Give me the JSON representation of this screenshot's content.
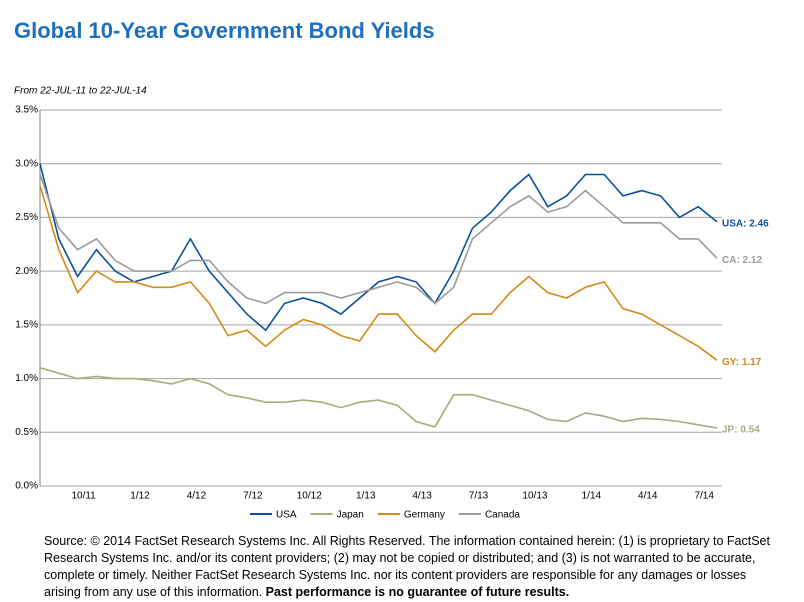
{
  "chart_data": {
    "type": "line",
    "title": "Global 10-Year Government Bond Yields",
    "subtitle": "From 22-JUL-11 to 22-JUL-14",
    "categories": [
      null,
      null,
      "10/11",
      null,
      null,
      "1/12",
      null,
      null,
      "4/12",
      null,
      null,
      "7/12",
      null,
      null,
      "10/12",
      null,
      null,
      "1/13",
      null,
      null,
      "4/13",
      null,
      null,
      "7/13",
      null,
      null,
      "10/13",
      null,
      null,
      "1/14",
      null,
      null,
      "4/14",
      null,
      null,
      "7/14",
      null
    ],
    "series": [
      {
        "name": "USA",
        "color": "#0a4f9e",
        "end_label": "USA: 2.46",
        "values": [
          3.0,
          2.3,
          1.95,
          2.2,
          2.0,
          1.9,
          1.95,
          2.0,
          2.3,
          2.0,
          1.8,
          1.6,
          1.45,
          1.7,
          1.75,
          1.7,
          1.6,
          1.75,
          1.9,
          1.95,
          1.9,
          1.7,
          2.0,
          2.4,
          2.55,
          2.75,
          2.9,
          2.6,
          2.7,
          2.9,
          2.9,
          2.7,
          2.75,
          2.7,
          2.5,
          2.6,
          2.46
        ]
      },
      {
        "name": "Japan",
        "color": "#a4ad80",
        "end_label": "JP: 0.54",
        "values": [
          1.1,
          1.05,
          1.0,
          1.02,
          1.0,
          1.0,
          0.98,
          0.95,
          1.0,
          0.95,
          0.85,
          0.82,
          0.78,
          0.78,
          0.8,
          0.78,
          0.73,
          0.78,
          0.8,
          0.75,
          0.6,
          0.55,
          0.85,
          0.85,
          0.8,
          0.75,
          0.7,
          0.62,
          0.6,
          0.68,
          0.65,
          0.6,
          0.63,
          0.62,
          0.6,
          0.57,
          0.54
        ]
      },
      {
        "name": "Germany",
        "color": "#d48a16",
        "end_label": "GY: 1.17",
        "values": [
          2.8,
          2.2,
          1.8,
          2.0,
          1.9,
          1.9,
          1.85,
          1.85,
          1.9,
          1.7,
          1.4,
          1.45,
          1.3,
          1.45,
          1.55,
          1.5,
          1.4,
          1.35,
          1.6,
          1.6,
          1.4,
          1.25,
          1.45,
          1.6,
          1.6,
          1.8,
          1.95,
          1.8,
          1.75,
          1.85,
          1.9,
          1.65,
          1.6,
          1.5,
          1.4,
          1.3,
          1.17
        ]
      },
      {
        "name": "Canada",
        "color": "#9b9b9b",
        "end_label": "CA: 2.12",
        "values": [
          2.9,
          2.4,
          2.2,
          2.3,
          2.1,
          2.0,
          2.0,
          2.0,
          2.1,
          2.1,
          1.9,
          1.75,
          1.7,
          1.8,
          1.8,
          1.8,
          1.75,
          1.8,
          1.85,
          1.9,
          1.85,
          1.7,
          1.85,
          2.3,
          2.45,
          2.6,
          2.7,
          2.55,
          2.6,
          2.75,
          2.6,
          2.45,
          2.45,
          2.45,
          2.3,
          2.3,
          2.12
        ]
      }
    ],
    "ylim": [
      0,
      3.5
    ],
    "yticks": [
      {
        "value": 0,
        "label": "0.0%"
      },
      {
        "value": 0.5,
        "label": "0.5%"
      },
      {
        "value": 1.0,
        "label": "1.0%"
      },
      {
        "value": 1.5,
        "label": "1.5%"
      },
      {
        "value": 2.0,
        "label": "2.0%"
      },
      {
        "value": 2.5,
        "label": "2.5%"
      },
      {
        "value": 3.0,
        "label": "3.0%"
      },
      {
        "value": 3.5,
        "label": "3.5%"
      }
    ],
    "grid": true,
    "legend": "bottom",
    "source": "Source: © 2014 FactSet Research Systems Inc. All Rights Reserved. The information contained herein: (1) is proprietary to FactSet Research Systems Inc. and/or its content providers; (2) may not be copied or distributed; and (3) is not warranted to be accurate, complete or timely. Neither FactSet Research Systems Inc. nor its content providers are responsible for any damages or losses arising from any use of this information.",
    "source_bold": "Past performance is no guarantee of future results."
  }
}
